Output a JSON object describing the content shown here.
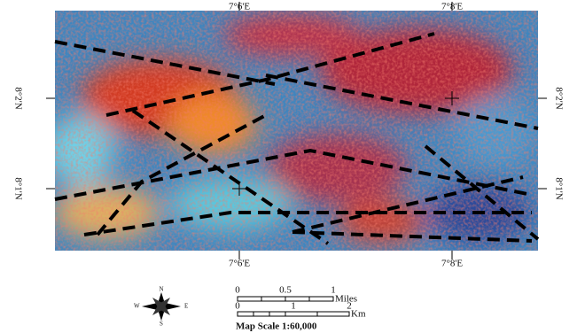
{
  "map": {
    "top_labels": [
      "7°6'E",
      "7°8'E"
    ],
    "bottom_labels": [
      "7°6'E",
      "7°8'E"
    ],
    "left_labels": [
      "8°2'N",
      "8°1'N"
    ],
    "right_labels": [
      "8°2'N",
      "8°1'N"
    ],
    "compass": {
      "n": "N",
      "s": "S",
      "e": "E",
      "w": "W"
    },
    "scale": {
      "miles_ticks": [
        "0",
        "0.5",
        "1"
      ],
      "miles_unit": "Miles",
      "km_ticks": [
        "0",
        "1",
        "2"
      ],
      "km_unit": "Km",
      "caption": "Map Scale 1:60,000"
    }
  }
}
